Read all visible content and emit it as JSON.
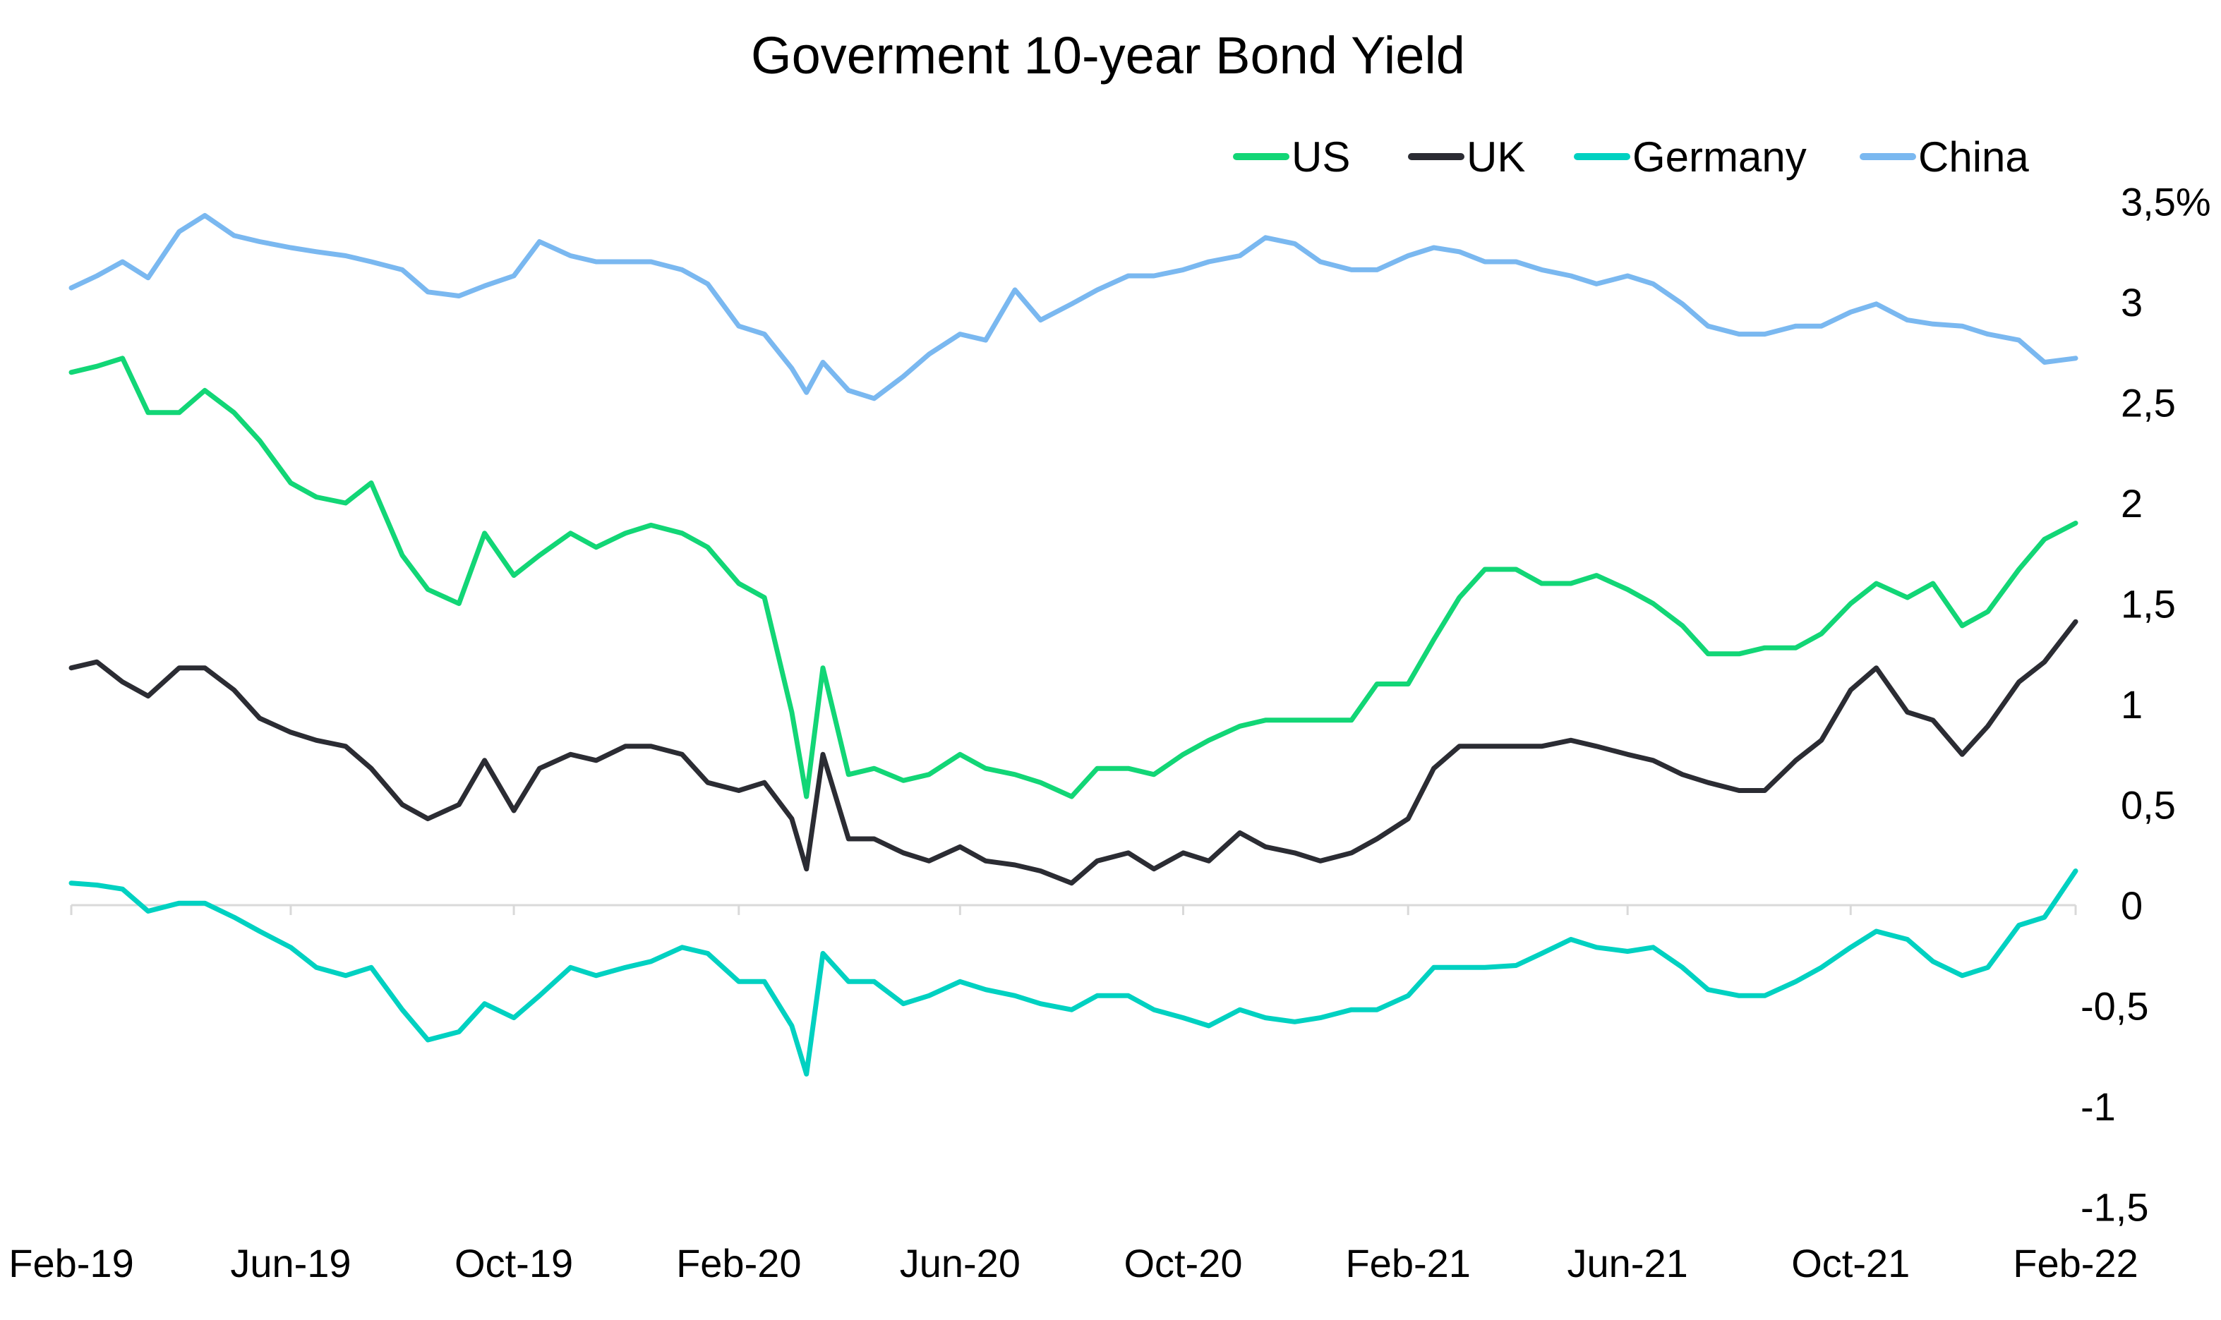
{
  "chart_data": {
    "type": "line",
    "title": "Goverment 10-year Bond Yield",
    "xlabel": "",
    "ylabel": "",
    "ylim": [
      -1.5,
      3.5
    ],
    "y_ticks": [
      {
        "value": 3.5,
        "label": "3,5%"
      },
      {
        "value": 3,
        "label": "3"
      },
      {
        "value": 2.5,
        "label": "2,5"
      },
      {
        "value": 2,
        "label": "2"
      },
      {
        "value": 1.5,
        "label": "1,5"
      },
      {
        "value": 1,
        "label": "1"
      },
      {
        "value": 0.5,
        "label": "0,5"
      },
      {
        "value": 0,
        "label": "0"
      },
      {
        "value": -0.5,
        "label": "-0,5"
      },
      {
        "value": -1,
        "label": "-1"
      },
      {
        "value": -1.5,
        "label": "-1,5"
      }
    ],
    "x_ticks": [
      {
        "date": "2019-02-01",
        "label": "Feb-19"
      },
      {
        "date": "2019-06-01",
        "label": "Jun-19"
      },
      {
        "date": "2019-10-01",
        "label": "Oct-19"
      },
      {
        "date": "2020-02-01",
        "label": "Feb-20"
      },
      {
        "date": "2020-06-01",
        "label": "Jun-20"
      },
      {
        "date": "2020-10-01",
        "label": "Oct-20"
      },
      {
        "date": "2021-02-01",
        "label": "Feb-21"
      },
      {
        "date": "2021-06-01",
        "label": "Jun-21"
      },
      {
        "date": "2021-10-01",
        "label": "Oct-21"
      },
      {
        "date": "2022-02-01",
        "label": "Feb-22"
      }
    ],
    "xlim": [
      "2019-02-01",
      "2022-02-01"
    ],
    "grid": false,
    "legend_position": "top-right",
    "x": [
      "2019-02-01",
      "2019-02-15",
      "2019-03-01",
      "2019-03-15",
      "2019-04-01",
      "2019-04-15",
      "2019-05-01",
      "2019-05-15",
      "2019-06-01",
      "2019-06-15",
      "2019-07-01",
      "2019-07-15",
      "2019-08-01",
      "2019-08-15",
      "2019-09-01",
      "2019-09-15",
      "2019-10-01",
      "2019-10-15",
      "2019-11-01",
      "2019-11-15",
      "2019-12-01",
      "2019-12-15",
      "2020-01-01",
      "2020-01-15",
      "2020-02-01",
      "2020-02-15",
      "2020-03-01",
      "2020-03-09",
      "2020-03-18",
      "2020-04-01",
      "2020-04-15",
      "2020-05-01",
      "2020-05-15",
      "2020-06-01",
      "2020-06-15",
      "2020-07-01",
      "2020-07-15",
      "2020-08-01",
      "2020-08-15",
      "2020-09-01",
      "2020-09-15",
      "2020-10-01",
      "2020-10-15",
      "2020-11-01",
      "2020-11-15",
      "2020-12-01",
      "2020-12-15",
      "2021-01-01",
      "2021-01-15",
      "2021-02-01",
      "2021-02-15",
      "2021-03-01",
      "2021-03-15",
      "2021-04-01",
      "2021-04-15",
      "2021-05-01",
      "2021-05-15",
      "2021-06-01",
      "2021-06-15",
      "2021-07-01",
      "2021-07-15",
      "2021-08-01",
      "2021-08-15",
      "2021-09-01",
      "2021-09-15",
      "2021-10-01",
      "2021-10-15",
      "2021-11-01",
      "2021-11-15",
      "2021-12-01",
      "2021-12-15",
      "2022-01-01",
      "2022-01-15",
      "2022-02-01"
    ],
    "series": [
      {
        "name": "US",
        "color": "#12d676",
        "values": [
          2.65,
          2.68,
          2.72,
          2.45,
          2.45,
          2.56,
          2.45,
          2.31,
          2.1,
          2.03,
          2.0,
          2.1,
          1.74,
          1.57,
          1.5,
          1.85,
          1.64,
          1.74,
          1.85,
          1.78,
          1.85,
          1.89,
          1.85,
          1.78,
          1.6,
          1.53,
          0.96,
          0.54,
          1.18,
          0.65,
          0.68,
          0.62,
          0.65,
          0.75,
          0.68,
          0.65,
          0.61,
          0.54,
          0.68,
          0.68,
          0.65,
          0.75,
          0.82,
          0.89,
          0.92,
          0.92,
          0.92,
          0.92,
          1.1,
          1.1,
          1.32,
          1.53,
          1.67,
          1.67,
          1.6,
          1.6,
          1.64,
          1.57,
          1.5,
          1.39,
          1.25,
          1.25,
          1.28,
          1.28,
          1.35,
          1.5,
          1.6,
          1.53,
          1.6,
          1.39,
          1.46,
          1.67,
          1.82,
          1.9
        ]
      },
      {
        "name": "UK",
        "color": "#2b2c33",
        "values": [
          1.18,
          1.21,
          1.11,
          1.04,
          1.18,
          1.18,
          1.07,
          0.93,
          0.86,
          0.82,
          0.79,
          0.68,
          0.5,
          0.43,
          0.5,
          0.72,
          0.47,
          0.68,
          0.75,
          0.72,
          0.79,
          0.79,
          0.75,
          0.61,
          0.57,
          0.61,
          0.43,
          0.18,
          0.75,
          0.33,
          0.33,
          0.26,
          0.22,
          0.29,
          0.22,
          0.2,
          0.17,
          0.11,
          0.22,
          0.26,
          0.18,
          0.26,
          0.22,
          0.36,
          0.29,
          0.26,
          0.22,
          0.26,
          0.33,
          0.43,
          0.68,
          0.79,
          0.79,
          0.79,
          0.79,
          0.82,
          0.79,
          0.75,
          0.72,
          0.65,
          0.61,
          0.57,
          0.57,
          0.72,
          0.82,
          1.07,
          1.18,
          0.96,
          0.92,
          0.75,
          0.89,
          1.11,
          1.21,
          1.41
        ]
      },
      {
        "name": "Germany",
        "color": "#00d1c1",
        "values": [
          0.11,
          0.1,
          0.08,
          -0.03,
          0.01,
          0.01,
          -0.06,
          -0.13,
          -0.21,
          -0.31,
          -0.35,
          -0.31,
          -0.52,
          -0.67,
          -0.63,
          -0.49,
          -0.56,
          -0.45,
          -0.31,
          -0.35,
          -0.31,
          -0.28,
          -0.21,
          -0.24,
          -0.38,
          -0.38,
          -0.6,
          -0.84,
          -0.24,
          -0.38,
          -0.38,
          -0.49,
          -0.45,
          -0.38,
          -0.42,
          -0.45,
          -0.49,
          -0.52,
          -0.45,
          -0.45,
          -0.52,
          -0.56,
          -0.6,
          -0.52,
          -0.56,
          -0.58,
          -0.56,
          -0.52,
          -0.52,
          -0.45,
          -0.31,
          -0.31,
          -0.31,
          -0.3,
          -0.24,
          -0.17,
          -0.21,
          -0.23,
          -0.21,
          -0.31,
          -0.42,
          -0.45,
          -0.45,
          -0.38,
          -0.31,
          -0.21,
          -0.13,
          -0.17,
          -0.28,
          -0.35,
          -0.31,
          -0.1,
          -0.06,
          0.17
        ]
      },
      {
        "name": "China",
        "color": "#7ab8f0",
        "values": [
          3.07,
          3.13,
          3.2,
          3.12,
          3.35,
          3.43,
          3.33,
          3.3,
          3.27,
          3.25,
          3.23,
          3.2,
          3.16,
          3.05,
          3.03,
          3.08,
          3.13,
          3.3,
          3.23,
          3.2,
          3.2,
          3.2,
          3.16,
          3.09,
          2.88,
          2.84,
          2.67,
          2.55,
          2.7,
          2.56,
          2.52,
          2.63,
          2.74,
          2.84,
          2.81,
          3.06,
          2.91,
          2.99,
          3.06,
          3.13,
          3.13,
          3.16,
          3.2,
          3.23,
          3.32,
          3.29,
          3.2,
          3.16,
          3.16,
          3.23,
          3.27,
          3.25,
          3.2,
          3.2,
          3.16,
          3.13,
          3.09,
          3.13,
          3.09,
          2.99,
          2.88,
          2.84,
          2.84,
          2.88,
          2.88,
          2.95,
          2.99,
          2.91,
          2.89,
          2.88,
          2.84,
          2.81,
          2.7,
          2.72
        ]
      }
    ]
  }
}
